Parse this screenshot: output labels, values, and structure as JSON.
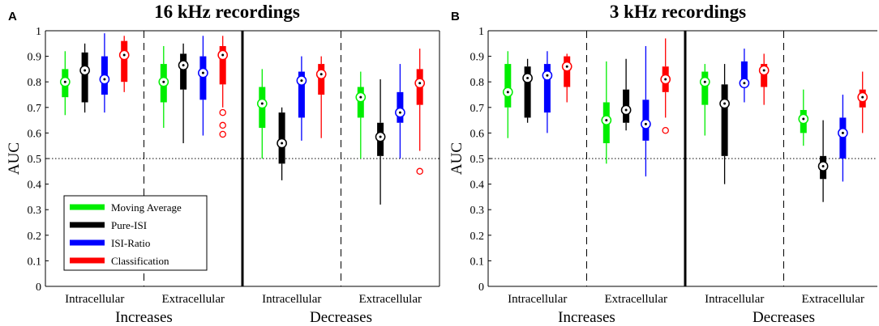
{
  "colors": {
    "Moving Average": "#00ee00",
    "Pure-ISI": "#000000",
    "ISI-Ratio": "#0000ff",
    "Classification": "#ff0000"
  },
  "chart_data": [
    {
      "type": "boxplot",
      "panel": "A",
      "title": "16 kHz recordings",
      "ylabel": "AUC",
      "ylim": [
        0,
        1
      ],
      "yticks": [
        "0",
        "0.1",
        "0.2",
        "0.3",
        "0.4",
        "0.5",
        "0.6",
        "0.7",
        "0.8",
        "0.9",
        "1"
      ],
      "reference_line": 0.5,
      "categories": [
        "Intracellular",
        "Extracellular",
        "Intracellular",
        "Extracellular"
      ],
      "category_groups": [
        "Increases",
        "Decreases"
      ],
      "legend": [
        "Moving Average",
        "Pure-ISI",
        "ISI-Ratio",
        "Classification"
      ],
      "groups": [
        [
          {
            "min": 0.67,
            "q1": 0.74,
            "median": 0.8,
            "q3": 0.85,
            "max": 0.92,
            "outliers": []
          },
          {
            "min": 0.68,
            "q1": 0.72,
            "median": 0.845,
            "q3": 0.915,
            "max": 0.95,
            "outliers": []
          },
          {
            "min": 0.68,
            "q1": 0.75,
            "median": 0.81,
            "q3": 0.9,
            "max": 0.99,
            "outliers": []
          },
          {
            "min": 0.76,
            "q1": 0.8,
            "median": 0.905,
            "q3": 0.96,
            "max": 0.98,
            "outliers": []
          }
        ],
        [
          {
            "min": 0.62,
            "q1": 0.72,
            "median": 0.8,
            "q3": 0.87,
            "max": 0.94,
            "outliers": []
          },
          {
            "min": 0.56,
            "q1": 0.77,
            "median": 0.865,
            "q3": 0.91,
            "max": 0.95,
            "outliers": []
          },
          {
            "min": 0.59,
            "q1": 0.73,
            "median": 0.835,
            "q3": 0.9,
            "max": 0.98,
            "outliers": []
          },
          {
            "min": 0.7,
            "q1": 0.79,
            "median": 0.905,
            "q3": 0.94,
            "max": 0.98,
            "outliers": [
              0.68,
              0.63,
              0.595
            ]
          }
        ],
        [
          {
            "min": 0.5,
            "q1": 0.62,
            "median": 0.715,
            "q3": 0.78,
            "max": 0.85,
            "outliers": []
          },
          {
            "min": 0.415,
            "q1": 0.48,
            "median": 0.56,
            "q3": 0.68,
            "max": 0.7,
            "outliers": []
          },
          {
            "min": 0.57,
            "q1": 0.66,
            "median": 0.805,
            "q3": 0.84,
            "max": 0.9,
            "outliers": []
          },
          {
            "min": 0.58,
            "q1": 0.75,
            "median": 0.83,
            "q3": 0.87,
            "max": 0.9,
            "outliers": []
          }
        ],
        [
          {
            "min": 0.5,
            "q1": 0.66,
            "median": 0.74,
            "q3": 0.78,
            "max": 0.84,
            "outliers": []
          },
          {
            "min": 0.32,
            "q1": 0.51,
            "median": 0.585,
            "q3": 0.64,
            "max": 0.81,
            "outliers": []
          },
          {
            "min": 0.5,
            "q1": 0.64,
            "median": 0.68,
            "q3": 0.76,
            "max": 0.87,
            "outliers": []
          },
          {
            "min": 0.53,
            "q1": 0.71,
            "median": 0.795,
            "q3": 0.85,
            "max": 0.93,
            "outliers": [
              0.45
            ]
          }
        ]
      ]
    },
    {
      "type": "boxplot",
      "panel": "B",
      "title": "3 kHz recordings",
      "ylabel": "AUC",
      "ylim": [
        0,
        1
      ],
      "yticks": [
        "0",
        "0.1",
        "0.2",
        "0.3",
        "0.4",
        "0.5",
        "0.6",
        "0.7",
        "0.8",
        "0.9",
        "1"
      ],
      "reference_line": 0.5,
      "categories": [
        "Intracellular",
        "Extracellular",
        "Intracellular",
        "Extracellular"
      ],
      "category_groups": [
        "Increases",
        "Decreases"
      ],
      "legend": [],
      "groups": [
        [
          {
            "min": 0.58,
            "q1": 0.7,
            "median": 0.76,
            "q3": 0.87,
            "max": 0.92,
            "outliers": []
          },
          {
            "min": 0.64,
            "q1": 0.66,
            "median": 0.815,
            "q3": 0.86,
            "max": 0.89,
            "outliers": []
          },
          {
            "min": 0.6,
            "q1": 0.68,
            "median": 0.825,
            "q3": 0.87,
            "max": 0.92,
            "outliers": []
          },
          {
            "min": 0.72,
            "q1": 0.78,
            "median": 0.86,
            "q3": 0.9,
            "max": 0.91,
            "outliers": []
          }
        ],
        [
          {
            "min": 0.48,
            "q1": 0.56,
            "median": 0.65,
            "q3": 0.72,
            "max": 0.88,
            "outliers": []
          },
          {
            "min": 0.61,
            "q1": 0.64,
            "median": 0.69,
            "q3": 0.77,
            "max": 0.89,
            "outliers": []
          },
          {
            "min": 0.43,
            "q1": 0.57,
            "median": 0.635,
            "q3": 0.73,
            "max": 0.94,
            "outliers": []
          },
          {
            "min": 0.66,
            "q1": 0.76,
            "median": 0.81,
            "q3": 0.86,
            "max": 0.97,
            "outliers": [
              0.61
            ]
          }
        ],
        [
          {
            "min": 0.59,
            "q1": 0.71,
            "median": 0.8,
            "q3": 0.84,
            "max": 0.87,
            "outliers": []
          },
          {
            "min": 0.4,
            "q1": 0.51,
            "median": 0.715,
            "q3": 0.79,
            "max": 0.87,
            "outliers": []
          },
          {
            "min": 0.72,
            "q1": 0.78,
            "median": 0.795,
            "q3": 0.88,
            "max": 0.93,
            "outliers": []
          },
          {
            "min": 0.71,
            "q1": 0.78,
            "median": 0.845,
            "q3": 0.87,
            "max": 0.91,
            "outliers": []
          }
        ],
        [
          {
            "min": 0.55,
            "q1": 0.6,
            "median": 0.655,
            "q3": 0.69,
            "max": 0.77,
            "outliers": []
          },
          {
            "min": 0.33,
            "q1": 0.42,
            "median": 0.47,
            "q3": 0.51,
            "max": 0.65,
            "outliers": []
          },
          {
            "min": 0.41,
            "q1": 0.5,
            "median": 0.6,
            "q3": 0.66,
            "max": 0.75,
            "outliers": []
          },
          {
            "min": 0.6,
            "q1": 0.7,
            "median": 0.74,
            "q3": 0.77,
            "max": 0.84,
            "outliers": []
          }
        ]
      ]
    }
  ]
}
